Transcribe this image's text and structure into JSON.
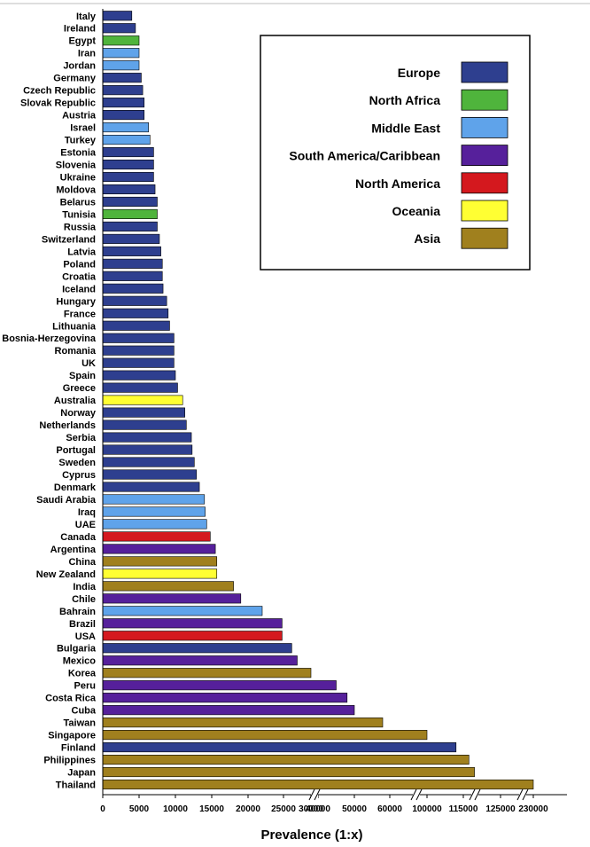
{
  "chart_data": {
    "type": "bar",
    "orientation": "horizontal",
    "title": "",
    "xlabel": "Prevalence (1:x)",
    "ylabel": "",
    "grid": false,
    "legend_position": "top-right",
    "axis_break": true,
    "x_ticks": [
      "0",
      "5000",
      "10000",
      "15000",
      "20000",
      "25000",
      "30000",
      "40000",
      "50000",
      "60000",
      "100000",
      "115000",
      "125000",
      "230000"
    ],
    "regions": [
      {
        "name": "Europe",
        "color": "#2e3f8f"
      },
      {
        "name": "North Africa",
        "color": "#4fb43c"
      },
      {
        "name": "Middle East",
        "color": "#5fa3ea"
      },
      {
        "name": "South America/Caribbean",
        "color": "#56209b"
      },
      {
        "name": "North America",
        "color": "#d4181e"
      },
      {
        "name": "Oceania",
        "color": "#ffff33"
      },
      {
        "name": "Asia",
        "color": "#a0801e"
      }
    ],
    "bars": [
      {
        "country": "Italy",
        "value": 4000,
        "region": "Europe"
      },
      {
        "country": "Ireland",
        "value": 4500,
        "region": "Europe"
      },
      {
        "country": "Egypt",
        "value": 5000,
        "region": "North Africa"
      },
      {
        "country": "Iran",
        "value": 5000,
        "region": "Middle East"
      },
      {
        "country": "Jordan",
        "value": 5000,
        "region": "Middle East"
      },
      {
        "country": "Germany",
        "value": 5300,
        "region": "Europe"
      },
      {
        "country": "Czech Republic",
        "value": 5500,
        "region": "Europe"
      },
      {
        "country": "Slovak Republic",
        "value": 5700,
        "region": "Europe"
      },
      {
        "country": "Austria",
        "value": 5700,
        "region": "Europe"
      },
      {
        "country": "Israel",
        "value": 6300,
        "region": "Middle East"
      },
      {
        "country": "Turkey",
        "value": 6500,
        "region": "Middle East"
      },
      {
        "country": "Estonia",
        "value": 7000,
        "region": "Europe"
      },
      {
        "country": "Slovenia",
        "value": 7000,
        "region": "Europe"
      },
      {
        "country": "Ukraine",
        "value": 7000,
        "region": "Europe"
      },
      {
        "country": "Moldova",
        "value": 7200,
        "region": "Europe"
      },
      {
        "country": "Belarus",
        "value": 7500,
        "region": "Europe"
      },
      {
        "country": "Tunisia",
        "value": 7500,
        "region": "North Africa"
      },
      {
        "country": "Russia",
        "value": 7500,
        "region": "Europe"
      },
      {
        "country": "Switzerland",
        "value": 7800,
        "region": "Europe"
      },
      {
        "country": "Latvia",
        "value": 8000,
        "region": "Europe"
      },
      {
        "country": "Poland",
        "value": 8200,
        "region": "Europe"
      },
      {
        "country": "Croatia",
        "value": 8200,
        "region": "Europe"
      },
      {
        "country": "Iceland",
        "value": 8300,
        "region": "Europe"
      },
      {
        "country": "Hungary",
        "value": 8800,
        "region": "Europe"
      },
      {
        "country": "France",
        "value": 9000,
        "region": "Europe"
      },
      {
        "country": "Lithuania",
        "value": 9200,
        "region": "Europe"
      },
      {
        "country": "Bosnia-Herzegovina",
        "value": 9800,
        "region": "Europe"
      },
      {
        "country": "Romania",
        "value": 9800,
        "region": "Europe"
      },
      {
        "country": "UK",
        "value": 9800,
        "region": "Europe"
      },
      {
        "country": "Spain",
        "value": 10000,
        "region": "Europe"
      },
      {
        "country": "Greece",
        "value": 10300,
        "region": "Europe"
      },
      {
        "country": "Australia",
        "value": 11000,
        "region": "Oceania"
      },
      {
        "country": "Norway",
        "value": 11300,
        "region": "Europe"
      },
      {
        "country": "Netherlands",
        "value": 11500,
        "region": "Europe"
      },
      {
        "country": "Serbia",
        "value": 12200,
        "region": "Europe"
      },
      {
        "country": "Portugal",
        "value": 12300,
        "region": "Europe"
      },
      {
        "country": "Sweden",
        "value": 12600,
        "region": "Europe"
      },
      {
        "country": "Cyprus",
        "value": 12900,
        "region": "Europe"
      },
      {
        "country": "Denmark",
        "value": 13300,
        "region": "Europe"
      },
      {
        "country": "Saudi Arabia",
        "value": 14000,
        "region": "Middle East"
      },
      {
        "country": "Iraq",
        "value": 14100,
        "region": "Middle East"
      },
      {
        "country": "UAE",
        "value": 14300,
        "region": "Middle East"
      },
      {
        "country": "Canada",
        "value": 14800,
        "region": "North America"
      },
      {
        "country": "Argentina",
        "value": 15500,
        "region": "South America/Caribbean"
      },
      {
        "country": "China",
        "value": 15700,
        "region": "Asia"
      },
      {
        "country": "New Zealand",
        "value": 15700,
        "region": "Oceania"
      },
      {
        "country": "India",
        "value": 18000,
        "region": "Asia"
      },
      {
        "country": "Chile",
        "value": 19000,
        "region": "South America/Caribbean"
      },
      {
        "country": "Bahrain",
        "value": 22000,
        "region": "Middle East"
      },
      {
        "country": "Brazil",
        "value": 24800,
        "region": "South America/Caribbean"
      },
      {
        "country": "USA",
        "value": 24800,
        "region": "North America"
      },
      {
        "country": "Bulgaria",
        "value": 26500,
        "region": "Europe"
      },
      {
        "country": "Mexico",
        "value": 27500,
        "region": "South America/Caribbean"
      },
      {
        "country": "Korea",
        "value": 30000,
        "region": "Asia"
      },
      {
        "country": "Peru",
        "value": 45000,
        "region": "South America/Caribbean"
      },
      {
        "country": "Costa Rica",
        "value": 48000,
        "region": "South America/Caribbean"
      },
      {
        "country": "Cuba",
        "value": 50000,
        "region": "South America/Caribbean"
      },
      {
        "country": "Taiwan",
        "value": 58000,
        "region": "Asia"
      },
      {
        "country": "Singapore",
        "value": 100000,
        "region": "Asia"
      },
      {
        "country": "Finland",
        "value": 112000,
        "region": "Europe"
      },
      {
        "country": "Philippines",
        "value": 116500,
        "region": "Asia"
      },
      {
        "country": "Japan",
        "value": 118000,
        "region": "Asia"
      },
      {
        "country": "Thailand",
        "value": 230000,
        "region": "Asia"
      }
    ]
  }
}
